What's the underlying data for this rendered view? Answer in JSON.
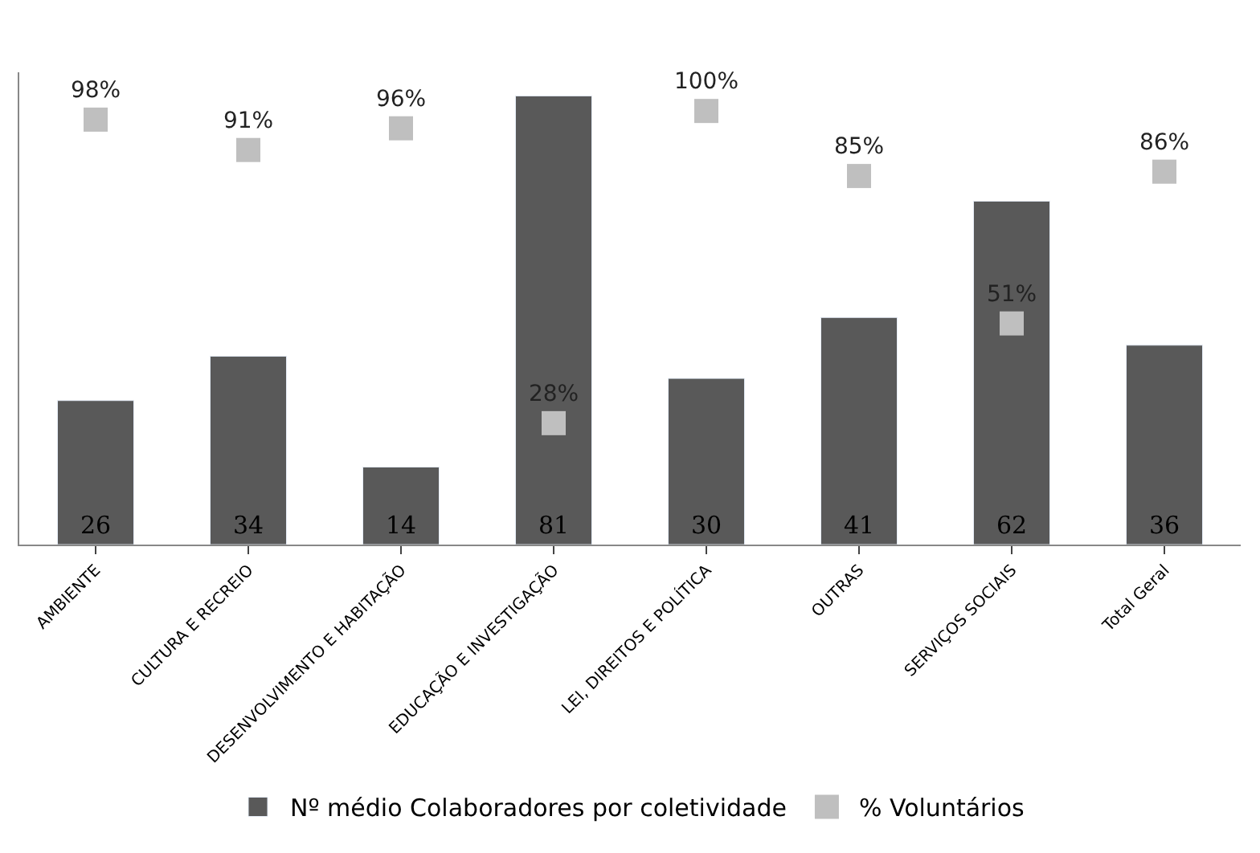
{
  "chart_data": {
    "type": "bar",
    "categories": [
      "AMBIENTE",
      "CULTURA E RECREIO",
      "DESENVOLVIMENTO E HABITAÇÃO",
      "EDUCAÇÃO E INVESTIGAÇÃO",
      "LEI, DIREITOS E POLÍTICA",
      "OUTRAS",
      "SERVIÇOS SOCIAIS",
      "Total Geral"
    ],
    "series": [
      {
        "name": "Nº médio Colaboradores por coletividade",
        "color": "#595959",
        "values": [
          26,
          34,
          14,
          81,
          30,
          41,
          62,
          36
        ],
        "value_labels": [
          "26",
          "34",
          "14",
          "81",
          "30",
          "41",
          "62",
          "36"
        ]
      },
      {
        "name": "% Voluntários",
        "color": "#bfbfbf",
        "type": "scatter",
        "axis": "y2",
        "marker": "square",
        "values": [
          98,
          91,
          96,
          28,
          100,
          85,
          51,
          86
        ],
        "value_labels": [
          "98%",
          "91%",
          "96%",
          "28%",
          "100%",
          "85%",
          "51%",
          "86%"
        ]
      }
    ],
    "legend": "bottom"
  }
}
